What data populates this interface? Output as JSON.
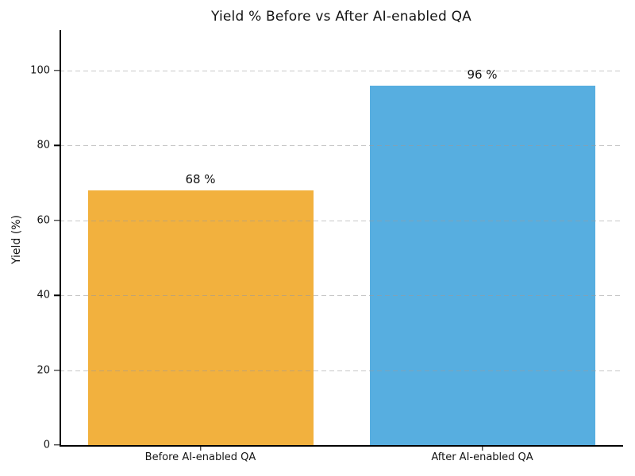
{
  "chart_data": {
    "type": "bar",
    "title": "Yield % Before vs After AI-enabled QA",
    "categories": [
      "Before AI-enabled QA",
      "After AI-enabled QA"
    ],
    "values": [
      68,
      96
    ],
    "value_labels": [
      "68 %",
      "96 %"
    ],
    "bar_colors": [
      "#F2B13E",
      "#57AEE0"
    ],
    "xlabel": "",
    "ylabel": "Yield (%)",
    "ylim": [
      0,
      110.8
    ],
    "yticks": [
      0,
      20,
      40,
      60,
      80,
      100
    ],
    "grid": {
      "axis": "y",
      "linestyle": "dashed",
      "color": "#9a9a9a"
    },
    "legend": "none",
    "background": "#ffffff"
  }
}
